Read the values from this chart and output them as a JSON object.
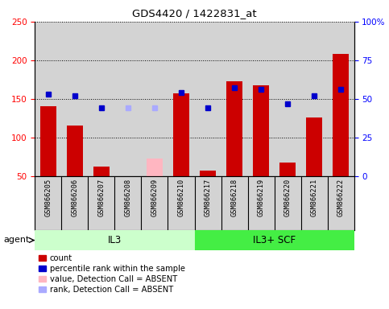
{
  "title": "GDS4420 / 1422831_at",
  "samples": [
    "GSM866205",
    "GSM866206",
    "GSM866207",
    "GSM866208",
    "GSM866209",
    "GSM866210",
    "GSM866217",
    "GSM866218",
    "GSM866219",
    "GSM866220",
    "GSM866221",
    "GSM866222"
  ],
  "counts": [
    140,
    115,
    62,
    null,
    null,
    157,
    57,
    173,
    168,
    68,
    126,
    208
  ],
  "absent_counts": [
    null,
    null,
    null,
    null,
    73,
    null,
    null,
    null,
    null,
    null,
    null,
    null
  ],
  "ranks": [
    53,
    52,
    44,
    null,
    null,
    54,
    44,
    57,
    56,
    47,
    52,
    56
  ],
  "absent_ranks": [
    null,
    null,
    null,
    44,
    44,
    null,
    null,
    null,
    null,
    null,
    null,
    null
  ],
  "groups": [
    {
      "label": "IL3",
      "start": 0,
      "end": 6,
      "color": "#ccffcc"
    },
    {
      "label": "IL3+ SCF",
      "start": 6,
      "end": 12,
      "color": "#44ee44"
    }
  ],
  "ylim_left": [
    50,
    250
  ],
  "ylim_right": [
    0,
    100
  ],
  "yticks_left": [
    50,
    100,
    150,
    200,
    250
  ],
  "yticks_right": [
    0,
    25,
    50,
    75,
    100
  ],
  "ytick_labels_right": [
    "0",
    "25",
    "50",
    "75",
    "100%"
  ],
  "bar_color": "#cc0000",
  "absent_bar_color": "#ffb6c1",
  "rank_color": "#0000cc",
  "absent_rank_color": "#aaaaff",
  "bg_color": "#d3d3d3",
  "agent_label": "agent",
  "legend_items": [
    {
      "color": "#cc0000",
      "label": "count"
    },
    {
      "color": "#0000cc",
      "label": "percentile rank within the sample"
    },
    {
      "color": "#ffb6c1",
      "label": "value, Detection Call = ABSENT"
    },
    {
      "color": "#aaaaff",
      "label": "rank, Detection Call = ABSENT"
    }
  ]
}
